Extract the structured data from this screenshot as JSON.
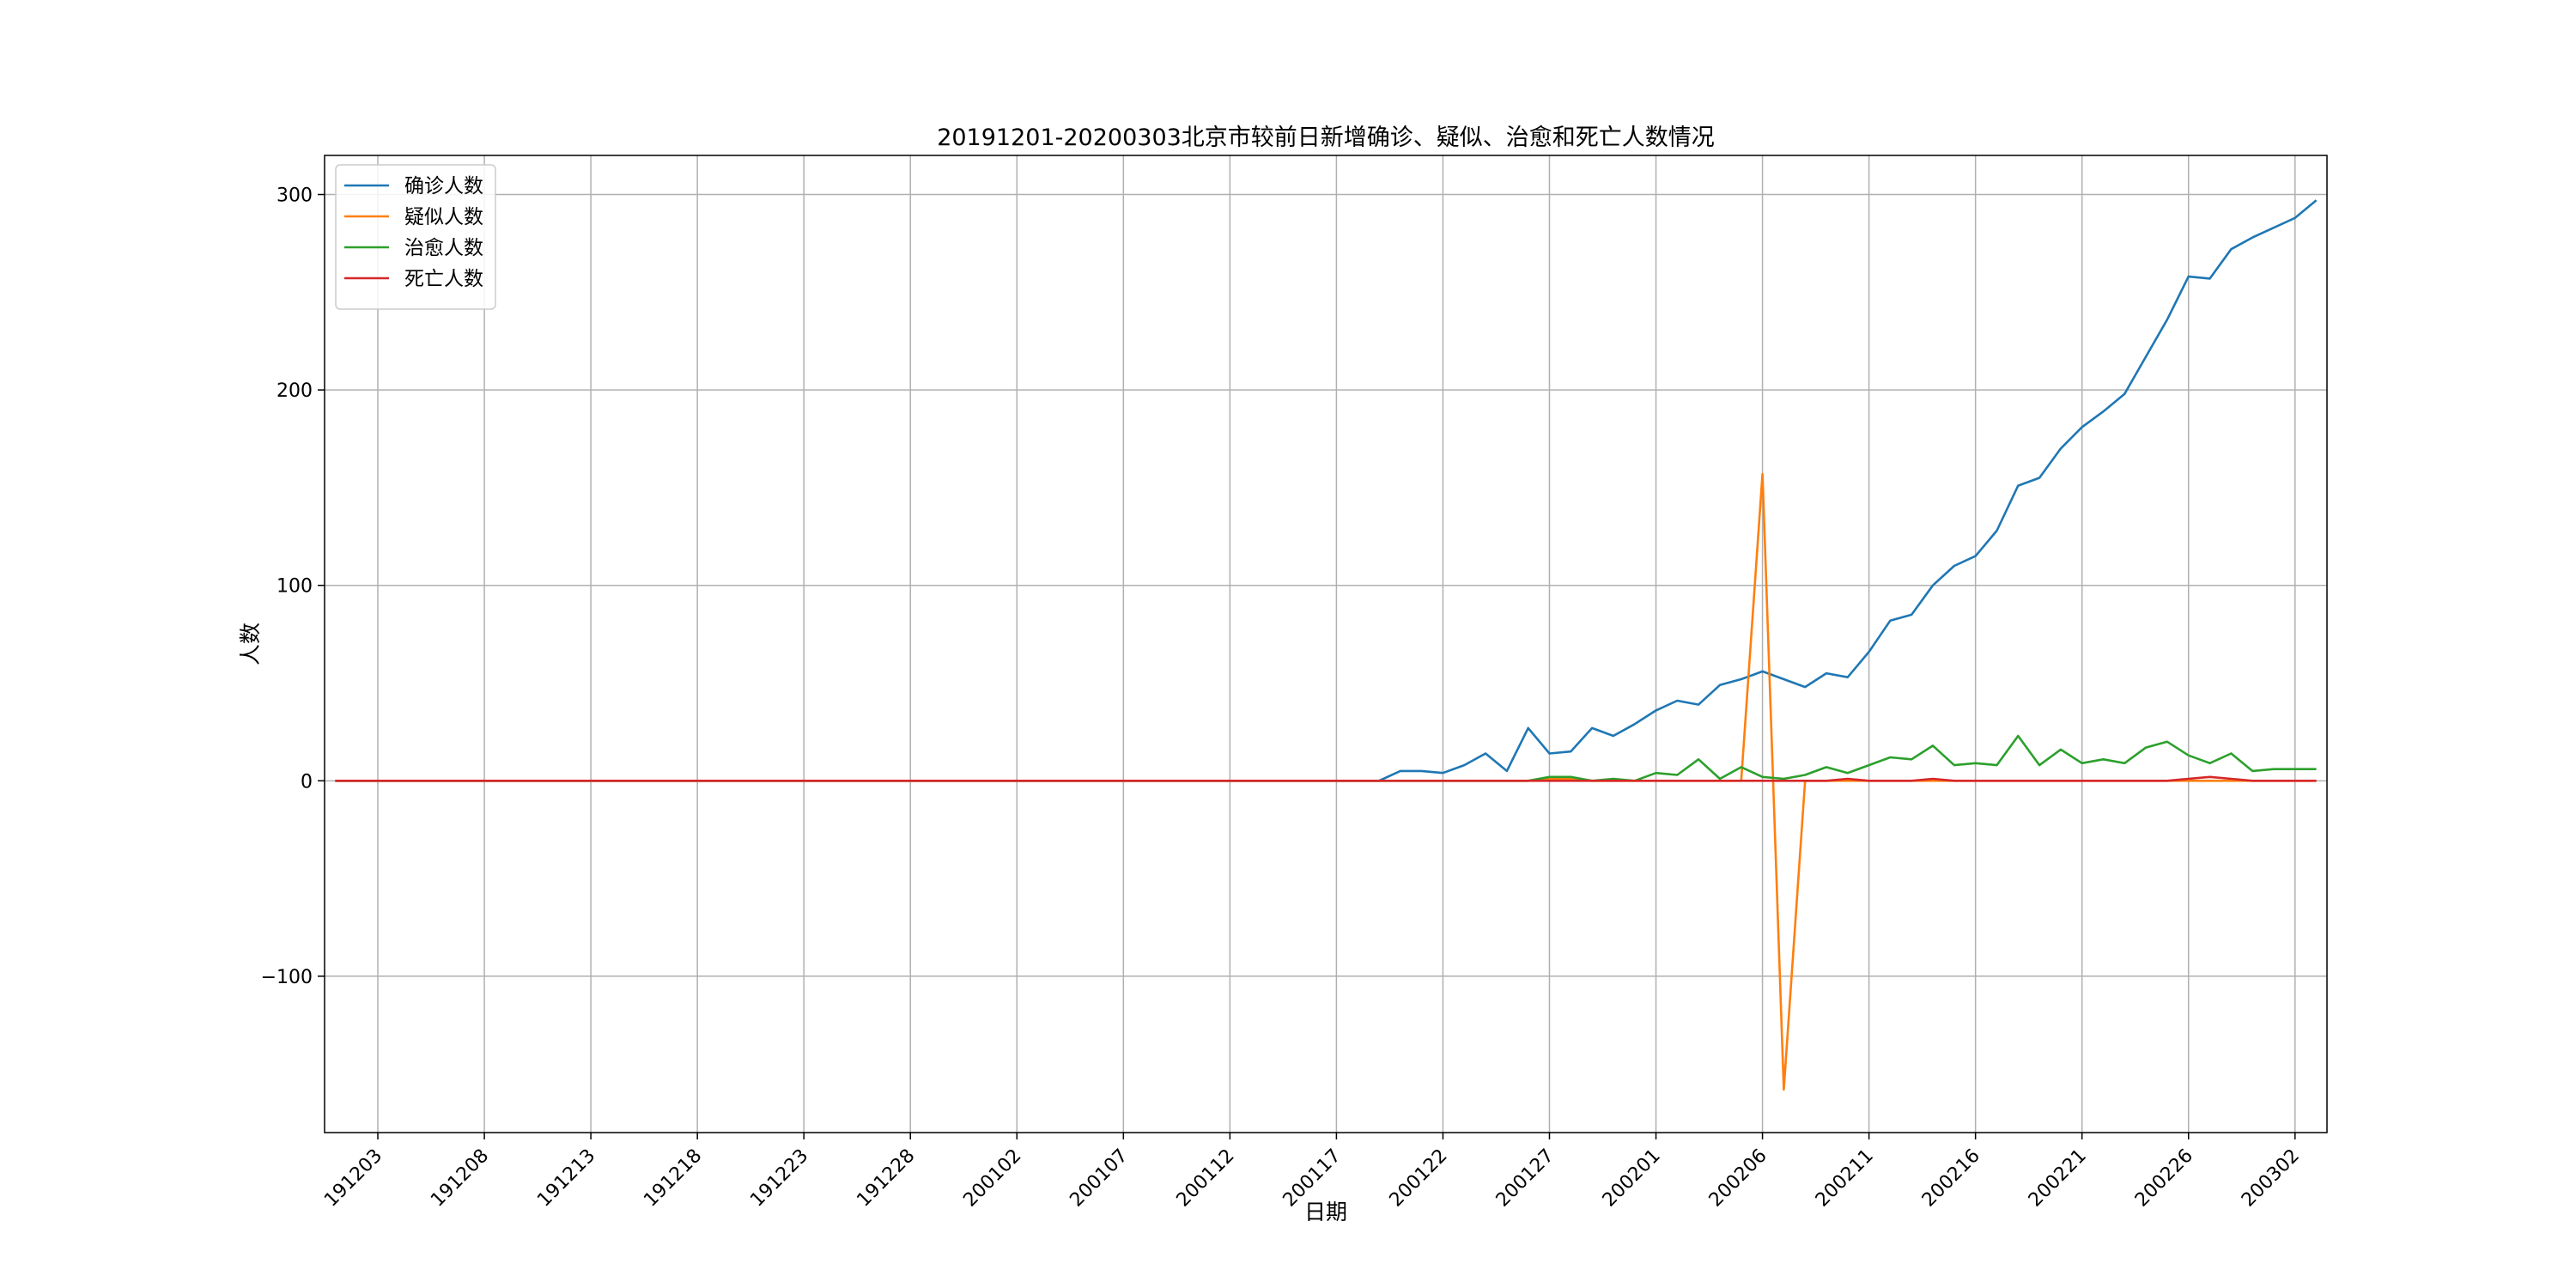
{
  "chart_data": {
    "type": "line",
    "title": "20191201-20200303北京市较前日新增确诊、疑似、治愈和死亡人数情况",
    "xlabel": "日期",
    "ylabel": "人数",
    "ylim": [
      -180,
      320
    ],
    "y_ticks": [
      -100,
      0,
      100,
      200,
      300
    ],
    "x_tick_labels": [
      "191203",
      "191208",
      "191213",
      "191218",
      "191223",
      "191228",
      "200102",
      "200107",
      "200112",
      "200117",
      "200122",
      "200127",
      "200201",
      "200206",
      "200211",
      "200216",
      "200221",
      "200226",
      "200302"
    ],
    "x_tick_index_start": 2,
    "x_tick_index_step": 5,
    "grid": true,
    "legend_position": "top-left",
    "x": [
      "191201",
      "191202",
      "191203",
      "191204",
      "191205",
      "191206",
      "191207",
      "191208",
      "191209",
      "191210",
      "191211",
      "191212",
      "191213",
      "191214",
      "191215",
      "191216",
      "191217",
      "191218",
      "191219",
      "191220",
      "191221",
      "191222",
      "191223",
      "191224",
      "191225",
      "191226",
      "191227",
      "191228",
      "191229",
      "191230",
      "191231",
      "200101",
      "200102",
      "200103",
      "200104",
      "200105",
      "200106",
      "200107",
      "200108",
      "200109",
      "200110",
      "200111",
      "200112",
      "200113",
      "200114",
      "200115",
      "200116",
      "200117",
      "200118",
      "200119",
      "200120",
      "200121",
      "200122",
      "200123",
      "200124",
      "200125",
      "200126",
      "200127",
      "200128",
      "200129",
      "200130",
      "200131",
      "200201",
      "200202",
      "200203",
      "200204",
      "200205",
      "200206",
      "200207",
      "200208",
      "200209",
      "200210",
      "200211",
      "200212",
      "200213",
      "200214",
      "200215",
      "200216",
      "200217",
      "200218",
      "200219",
      "200220",
      "200221",
      "200222",
      "200223",
      "200224",
      "200225",
      "200226",
      "200227",
      "200228",
      "200229",
      "200301",
      "200302",
      "200303"
    ],
    "series": [
      {
        "name": "确诊人数",
        "color": "#1f77b4",
        "values": [
          0,
          0,
          0,
          0,
          0,
          0,
          0,
          0,
          0,
          0,
          0,
          0,
          0,
          0,
          0,
          0,
          0,
          0,
          0,
          0,
          0,
          0,
          0,
          0,
          0,
          0,
          0,
          0,
          0,
          0,
          0,
          0,
          0,
          0,
          0,
          0,
          0,
          0,
          0,
          0,
          0,
          0,
          0,
          0,
          0,
          0,
          0,
          0,
          0,
          0,
          5,
          5,
          4,
          8,
          14,
          5,
          27,
          14,
          15,
          27,
          23,
          29,
          36,
          41,
          39,
          49,
          52,
          56,
          52,
          48,
          55,
          53,
          66,
          82,
          85,
          100,
          110,
          115,
          128,
          151,
          155,
          170,
          181,
          189,
          198,
          217,
          236,
          258,
          257,
          272,
          278,
          283,
          288,
          297
        ]
      },
      {
        "name": "疑似人数",
        "color": "#ff7f0e",
        "values": [
          0,
          0,
          0,
          0,
          0,
          0,
          0,
          0,
          0,
          0,
          0,
          0,
          0,
          0,
          0,
          0,
          0,
          0,
          0,
          0,
          0,
          0,
          0,
          0,
          0,
          0,
          0,
          0,
          0,
          0,
          0,
          0,
          0,
          0,
          0,
          0,
          0,
          0,
          0,
          0,
          0,
          0,
          0,
          0,
          0,
          0,
          0,
          0,
          0,
          0,
          0,
          0,
          0,
          0,
          0,
          0,
          0,
          1,
          1,
          0,
          0,
          0,
          0,
          0,
          0,
          0,
          0,
          157,
          -158,
          0,
          0,
          0,
          0,
          0,
          0,
          0,
          0,
          0,
          0,
          0,
          0,
          0,
          0,
          0,
          0,
          0,
          0,
          0,
          0,
          0,
          0,
          0,
          0,
          0
        ]
      },
      {
        "name": "治愈人数",
        "color": "#2ca02c",
        "values": [
          0,
          0,
          0,
          0,
          0,
          0,
          0,
          0,
          0,
          0,
          0,
          0,
          0,
          0,
          0,
          0,
          0,
          0,
          0,
          0,
          0,
          0,
          0,
          0,
          0,
          0,
          0,
          0,
          0,
          0,
          0,
          0,
          0,
          0,
          0,
          0,
          0,
          0,
          0,
          0,
          0,
          0,
          0,
          0,
          0,
          0,
          0,
          0,
          0,
          0,
          0,
          0,
          0,
          0,
          0,
          0,
          0,
          2,
          2,
          0,
          1,
          0,
          4,
          3,
          11,
          1,
          7,
          2,
          1,
          3,
          7,
          4,
          8,
          12,
          11,
          18,
          8,
          9,
          8,
          23,
          8,
          16,
          9,
          11,
          9,
          17,
          20,
          13,
          9,
          14,
          5,
          6,
          6,
          6
        ]
      },
      {
        "name": "死亡人数",
        "color": "#d62728",
        "values": [
          0,
          0,
          0,
          0,
          0,
          0,
          0,
          0,
          0,
          0,
          0,
          0,
          0,
          0,
          0,
          0,
          0,
          0,
          0,
          0,
          0,
          0,
          0,
          0,
          0,
          0,
          0,
          0,
          0,
          0,
          0,
          0,
          0,
          0,
          0,
          0,
          0,
          0,
          0,
          0,
          0,
          0,
          0,
          0,
          0,
          0,
          0,
          0,
          0,
          0,
          0,
          0,
          0,
          0,
          0,
          0,
          0,
          0,
          0,
          0,
          0,
          0,
          0,
          0,
          0,
          0,
          0,
          0,
          0,
          0,
          0,
          1,
          0,
          0,
          0,
          1,
          0,
          0,
          0,
          0,
          0,
          0,
          0,
          0,
          0,
          0,
          0,
          1,
          2,
          1,
          0,
          0,
          0,
          0
        ]
      }
    ]
  }
}
